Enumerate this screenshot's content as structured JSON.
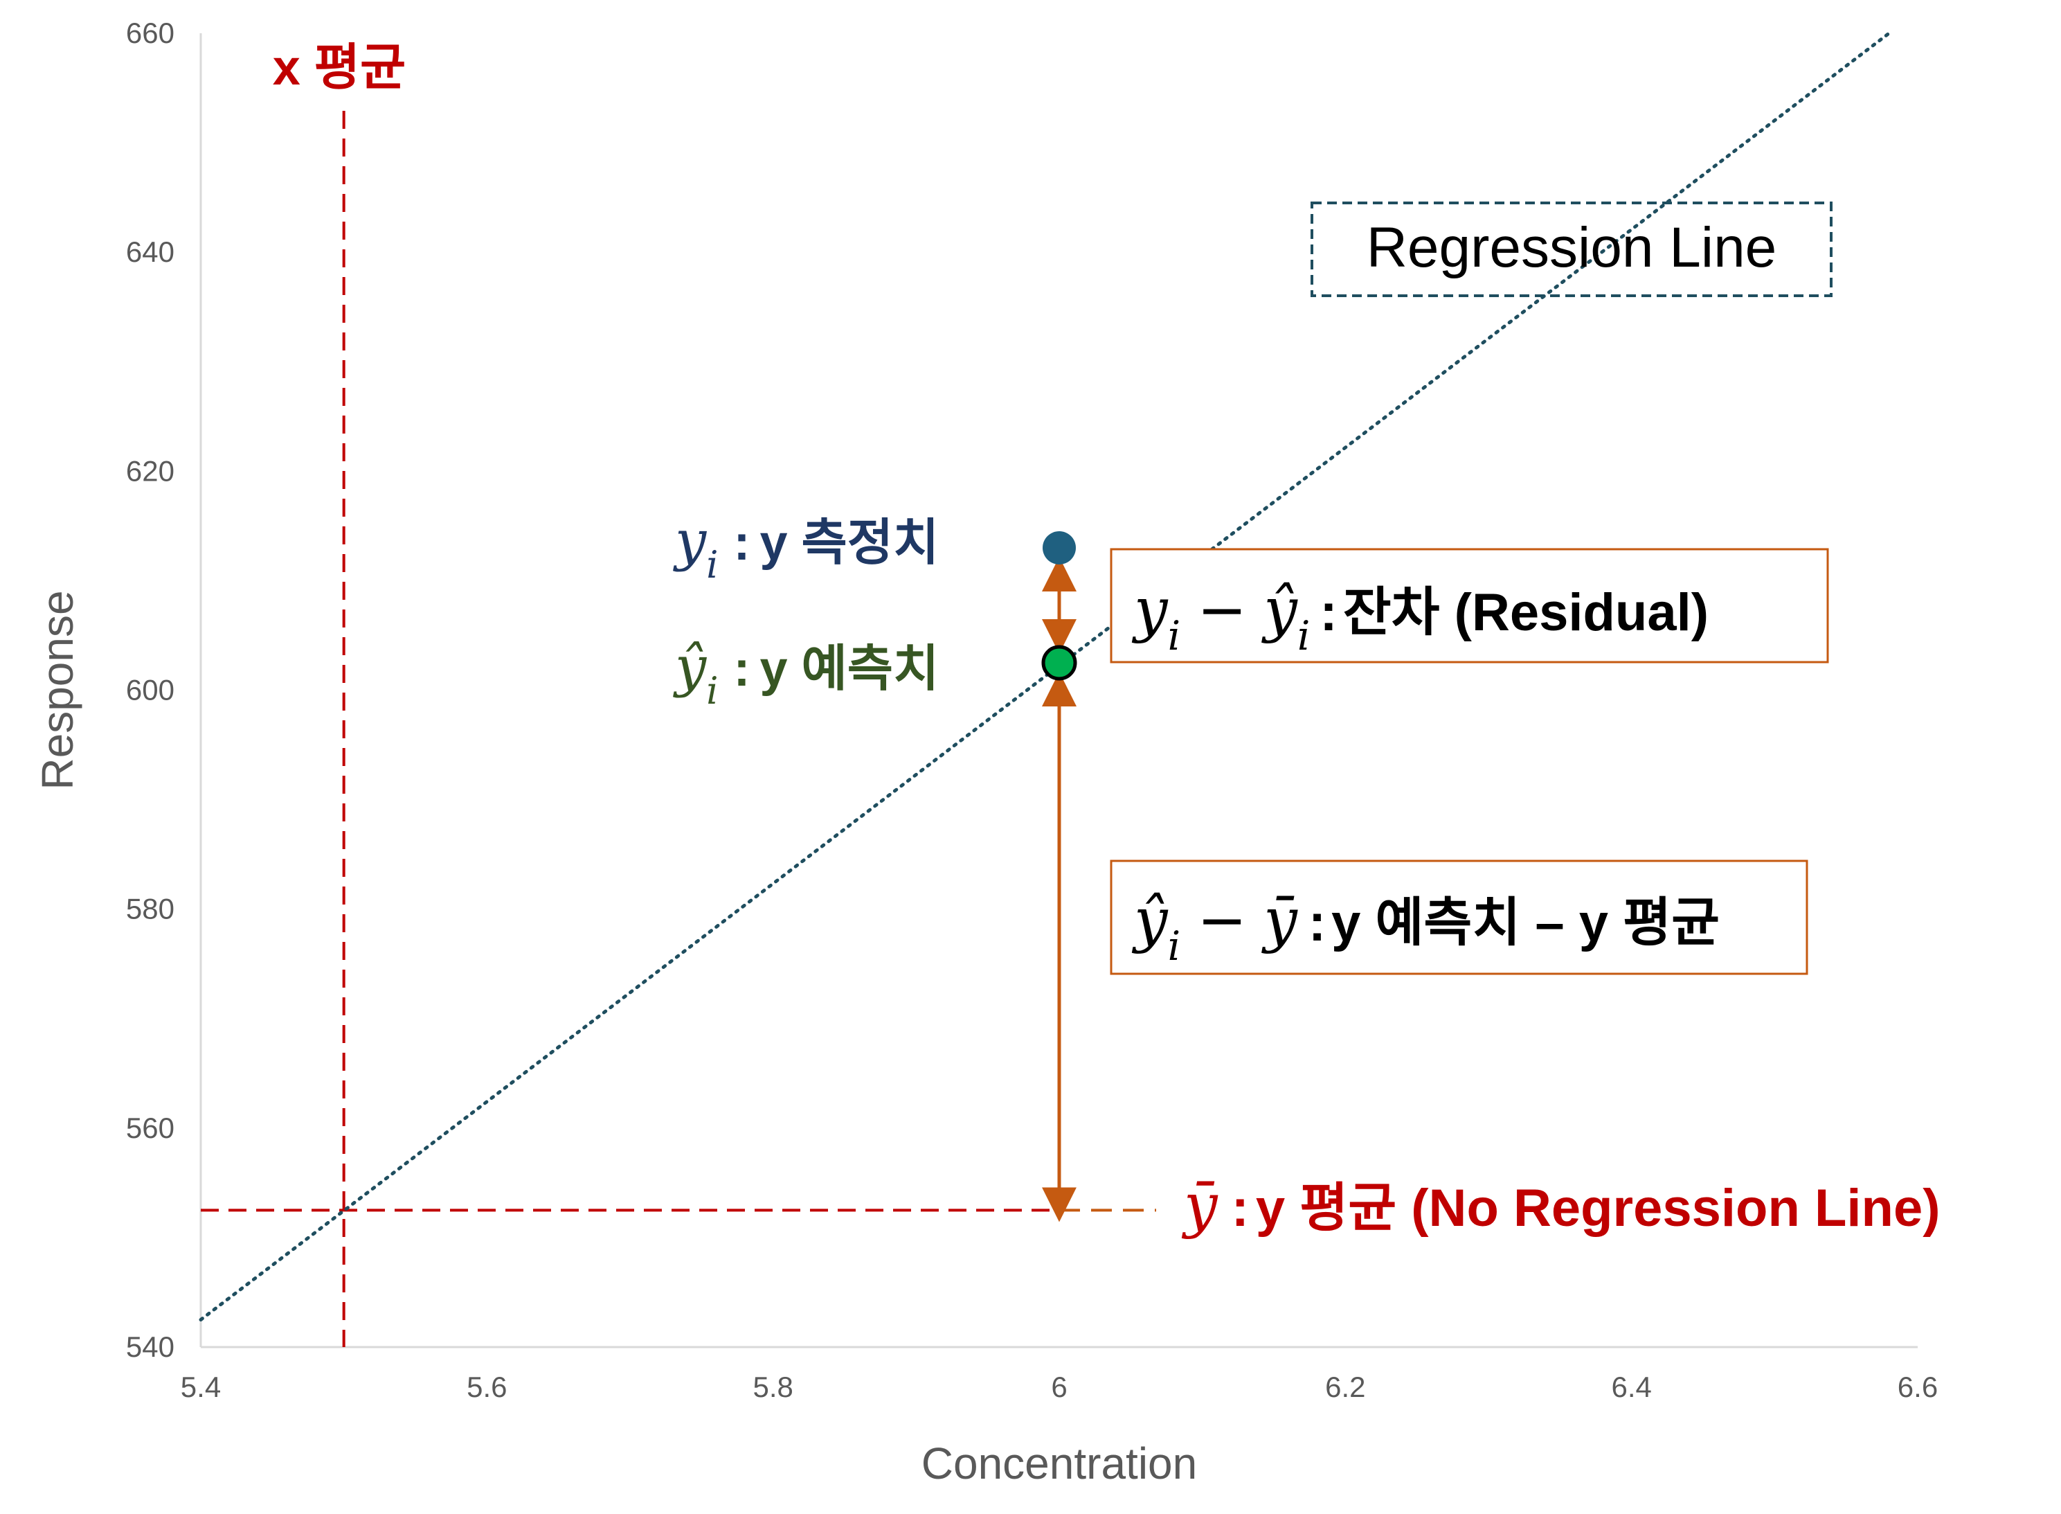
{
  "chart_data": {
    "type": "scatter",
    "title": "",
    "xlabel": "Concentration",
    "ylabel": "Response",
    "xlim": [
      5.4,
      6.6
    ],
    "ylim": [
      540,
      660
    ],
    "x_ticks": [
      "5.4",
      "5.6",
      "5.8",
      "6",
      "6.2",
      "6.4",
      "6.6"
    ],
    "y_ticks": [
      "540",
      "560",
      "580",
      "600",
      "620",
      "640",
      "660"
    ],
    "grid": false,
    "x_mean": 5.5,
    "y_mean": 552.5,
    "regression_line": {
      "label": "Regression Line",
      "x": [
        5.4,
        6.58
      ],
      "y": [
        542.5,
        660
      ]
    },
    "observed_point": {
      "x": 6.0,
      "y": 613
    },
    "predicted_point": {
      "x": 6.0,
      "y": 602.5
    },
    "annotations": {
      "x_mean_label": "x 평균",
      "observed_label": {
        "symbol": "y",
        "sub": "i",
        "text": "y 측정치"
      },
      "predicted_label": {
        "symbol": "ŷ",
        "sub": "i",
        "text": "y 예측치"
      },
      "residual_label": {
        "lhs_a": "y",
        "lhs_a_sub": "i",
        "minus": "−",
        "lhs_b": "ŷ",
        "lhs_b_sub": "i",
        "text": "잔차 (Residual)"
      },
      "explained_label": {
        "lhs_a": "ŷ",
        "lhs_a_sub": "i",
        "minus": "−",
        "lhs_b": "ȳ",
        "text": "y 예측치 – y 평균"
      },
      "y_mean_label": {
        "symbol": "ȳ",
        "text": "y 평균 (No Regression Line)"
      }
    },
    "colors": {
      "axis": "#d9d9d9",
      "regression": "#1f4e5f",
      "mean": "#c00000",
      "arrow": "#c55a11",
      "observed": "#1f6080",
      "predicted": "#00b050",
      "observed_label": "#1f3864",
      "predicted_label": "#375623"
    }
  }
}
